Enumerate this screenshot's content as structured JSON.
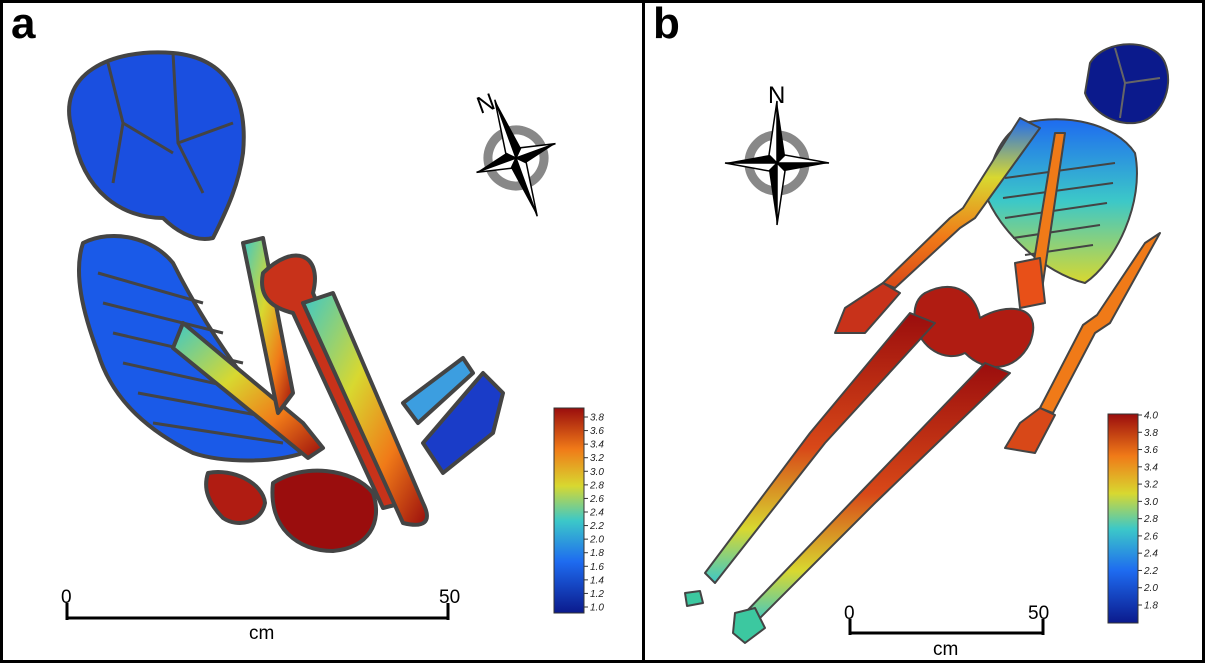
{
  "panels": [
    {
      "id": "a",
      "letter": "a",
      "compass_label": "N",
      "scale": {
        "start": "0",
        "end": "50",
        "unit": "cm"
      },
      "legend": {
        "ticks": [
          "3.8",
          "3.6",
          "3.4",
          "3.2",
          "3.0",
          "2.8",
          "2.6",
          "2.4",
          "2.2",
          "2.0",
          "1.8",
          "1.6",
          "1.4",
          "1.2",
          "1.0"
        ]
      }
    },
    {
      "id": "b",
      "letter": "b",
      "compass_label": "N",
      "scale": {
        "start": "0",
        "end": "50",
        "unit": "cm"
      },
      "legend": {
        "ticks": [
          "4.0",
          "3.8",
          "3.6",
          "3.4",
          "3.2",
          "3.0",
          "2.8",
          "2.6",
          "2.4",
          "2.2",
          "2.0",
          "1.8"
        ]
      }
    }
  ],
  "colors": {
    "low": "#0b1a8c",
    "mid_low": "#1e6bf0",
    "mid": "#3cc8c8",
    "mid_high": "#d8d830",
    "high": "#f07a18",
    "max": "#9a0d0d",
    "outline": "#444444"
  }
}
